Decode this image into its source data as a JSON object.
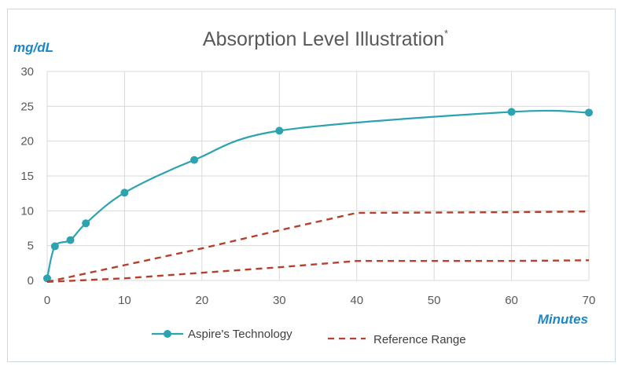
{
  "chart_data": {
    "type": "line",
    "title": "Absorption Level Illustration",
    "title_mark": "*",
    "ylabel": "mg/dL",
    "xlabel": "Minutes",
    "xlim": [
      0,
      70
    ],
    "ylim": [
      0,
      30
    ],
    "x_ticks": [
      0,
      10,
      20,
      30,
      40,
      50,
      60,
      70
    ],
    "y_ticks": [
      0,
      5,
      10,
      15,
      20,
      25,
      30
    ],
    "grid": true,
    "legend_position": "bottom",
    "series": [
      {
        "name": "Aspire's Technology",
        "color": "#2ba3b0",
        "style": "smooth-solid-markers",
        "points": [
          [
            0,
            0.3
          ],
          [
            1,
            4.9
          ],
          [
            3,
            5.8
          ],
          [
            5,
            8.2
          ],
          [
            10,
            12.6
          ],
          [
            19,
            17.3
          ],
          [
            30,
            21.5
          ],
          [
            60,
            24.2
          ],
          [
            70,
            24.1
          ]
        ]
      },
      {
        "name": "Reference Range",
        "color": "#b5402b",
        "style": "dashed",
        "points": [
          [
            0,
            -0.2
          ],
          [
            10,
            2.2
          ],
          [
            20,
            4.6
          ],
          [
            30,
            7.2
          ],
          [
            40,
            9.7
          ],
          [
            60,
            9.8
          ],
          [
            70,
            9.9
          ]
        ]
      },
      {
        "name": "",
        "color": "#b5402b",
        "style": "dashed",
        "points": [
          [
            0,
            -0.2
          ],
          [
            10,
            0.3
          ],
          [
            20,
            1.1
          ],
          [
            30,
            1.9
          ],
          [
            40,
            2.8
          ],
          [
            60,
            2.8
          ],
          [
            70,
            2.9
          ]
        ]
      }
    ]
  }
}
